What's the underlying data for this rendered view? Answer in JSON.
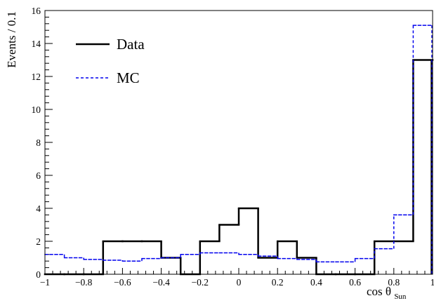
{
  "chart_data": {
    "type": "histogram",
    "xlabel": "cos θ",
    "xlabel_sub": "Sun",
    "ylabel": "Events / 0.1",
    "xlim": [
      -1,
      1
    ],
    "ylim": [
      0,
      16
    ],
    "xticks": [
      -1,
      -0.8,
      -0.6,
      -0.4,
      -0.2,
      0,
      0.2,
      0.4,
      0.6,
      0.8,
      1
    ],
    "xtick_labels": [
      "−1",
      "−0.8",
      "−0.6",
      "−0.4",
      "−0.2",
      "0",
      "0.2",
      "0.4",
      "0.6",
      "0.8",
      "1"
    ],
    "yticks": [
      0,
      2,
      4,
      6,
      8,
      10,
      12,
      14,
      16
    ],
    "ytick_labels": [
      "0",
      "2",
      "4",
      "6",
      "8",
      "10",
      "12",
      "14",
      "16"
    ],
    "bin_edges": [
      -1,
      -0.9,
      -0.8,
      -0.7,
      -0.6,
      -0.5,
      -0.4,
      -0.3,
      -0.2,
      -0.1,
      0,
      0.1,
      0.2,
      0.3,
      0.4,
      0.5,
      0.6,
      0.7,
      0.8,
      0.9,
      1
    ],
    "legend_position": "top-left",
    "series": [
      {
        "name": "Data",
        "color": "#000000",
        "style": "solid",
        "values": [
          0,
          0,
          0,
          2,
          2,
          2,
          1,
          0,
          2,
          3,
          4,
          1,
          2,
          1,
          0,
          0,
          0,
          2,
          2,
          13
        ]
      },
      {
        "name": "MC",
        "color": "#0000ee",
        "style": "dashed",
        "values": [
          1.2,
          1.0,
          0.9,
          0.85,
          0.8,
          0.95,
          1.0,
          1.2,
          1.3,
          1.3,
          1.2,
          1.1,
          0.95,
          0.9,
          0.75,
          0.75,
          0.95,
          1.55,
          3.6,
          15.1
        ]
      }
    ]
  }
}
